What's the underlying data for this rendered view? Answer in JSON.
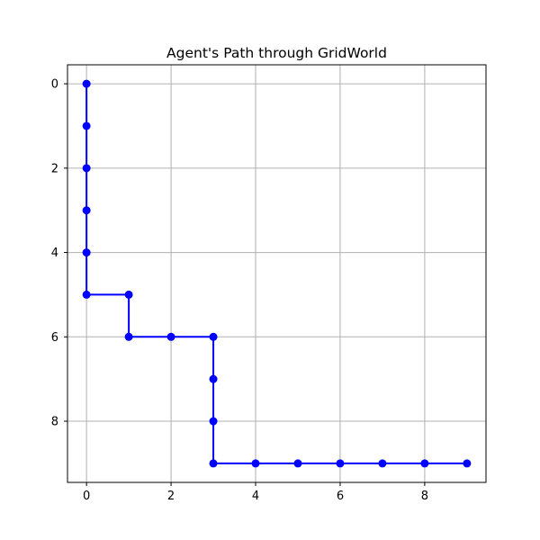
{
  "chart_data": {
    "type": "line",
    "title": "Agent's Path through GridWorld",
    "xlabel": "",
    "ylabel": "",
    "xlim": [
      -0.45,
      9.45
    ],
    "ylim": [
      9.45,
      -0.45
    ],
    "y_inverted": true,
    "xticks": [
      0,
      2,
      4,
      6,
      8
    ],
    "yticks": [
      0,
      2,
      4,
      6,
      8
    ],
    "grid": true,
    "colors": {
      "series": "#0000ff",
      "grid": "#b0b0b0",
      "axes": "#000000"
    },
    "series": [
      {
        "marker": "circle",
        "points": [
          {
            "x": 0,
            "y": 0
          },
          {
            "x": 0,
            "y": 1
          },
          {
            "x": 0,
            "y": 2
          },
          {
            "x": 0,
            "y": 3
          },
          {
            "x": 0,
            "y": 4
          },
          {
            "x": 0,
            "y": 5
          },
          {
            "x": 1,
            "y": 5
          },
          {
            "x": 1,
            "y": 6
          },
          {
            "x": 2,
            "y": 6
          },
          {
            "x": 3,
            "y": 6
          },
          {
            "x": 3,
            "y": 7
          },
          {
            "x": 3,
            "y": 8
          },
          {
            "x": 3,
            "y": 9
          },
          {
            "x": 4,
            "y": 9
          },
          {
            "x": 5,
            "y": 9
          },
          {
            "x": 6,
            "y": 9
          },
          {
            "x": 7,
            "y": 9
          },
          {
            "x": 8,
            "y": 9
          },
          {
            "x": 9,
            "y": 9
          }
        ]
      }
    ]
  }
}
